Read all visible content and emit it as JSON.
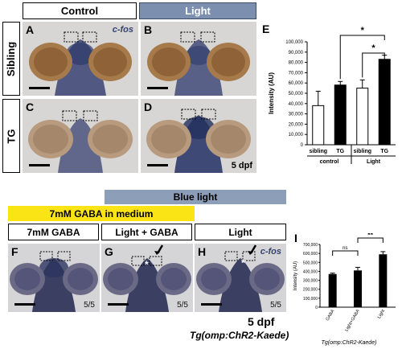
{
  "headers": {
    "control": "Control",
    "light": "Light",
    "blue_light": "Blue light",
    "gaba_in_medium": "7mM GABA in medium",
    "gaba": "7mM GABA",
    "light_gaba": "Light + GABA",
    "light2": "Light"
  },
  "row_labels": {
    "sibling": "Sibling",
    "tg": "TG"
  },
  "panels": {
    "A": "A",
    "B": "B",
    "C": "C",
    "D": "D",
    "F": "F",
    "G": "G",
    "H": "H",
    "cfos": "c-fos",
    "fraction": "5/5"
  },
  "stage_top": "5 dpf",
  "stage_bottom": "5 dpf",
  "genotype": "Tg(omp:ChR2-Kaede)",
  "genotype_small": "Tg(omp:ChR2-Kaede)",
  "chart_E_label": "E",
  "chart_I_label": "I",
  "colors": {
    "light_header": "#7d8fae",
    "blue_light_bar": "#8d9eb9",
    "gaba_bar": "#fbe415",
    "stain": "#2e3a6a"
  },
  "chart_data": [
    {
      "type": "bar",
      "panel": "E",
      "categories": [
        "sibling",
        "TG",
        "sibling",
        "TG"
      ],
      "groups": [
        "control",
        "Light"
      ],
      "values": [
        38000,
        58000,
        55000,
        83000
      ],
      "errors": [
        14000,
        3500,
        8000,
        4000
      ],
      "fills": [
        "#ffffff",
        "#000000",
        "#ffffff",
        "#000000"
      ],
      "ylabel": "Intensity (AU)",
      "ylim": [
        0,
        100000
      ],
      "yticks": [
        "0",
        "10,000",
        "20,000",
        "30,000",
        "40,000",
        "50,000",
        "60,000",
        "70,000",
        "80,000",
        "90,000",
        "100,000"
      ],
      "significance": [
        "*",
        "*"
      ]
    },
    {
      "type": "bar",
      "panel": "I",
      "categories": [
        "GABA",
        "Light+GABA",
        "Light"
      ],
      "values": [
        370000,
        410000,
        590000
      ],
      "errors": [
        10000,
        35000,
        30000
      ],
      "ylabel": "Intensity (AU)",
      "ylim": [
        0,
        700000
      ],
      "yticks": [
        "0",
        "100,000",
        "200,000",
        "300,000",
        "400,000",
        "500,000",
        "600,000",
        "700,000"
      ],
      "significance": [
        "ns",
        "**"
      ]
    }
  ]
}
